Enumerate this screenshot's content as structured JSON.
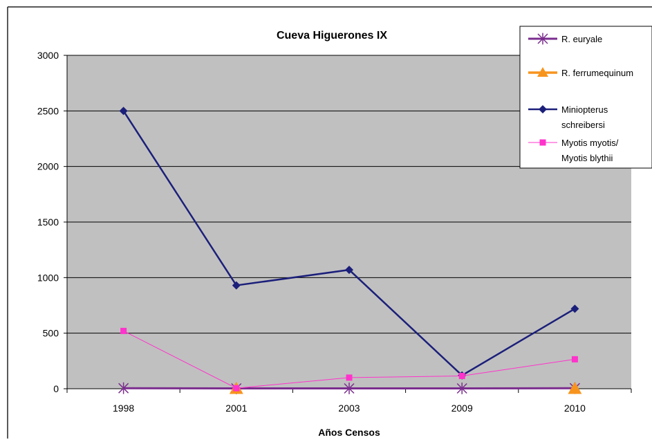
{
  "chart_data": {
    "type": "line",
    "title": "Cueva Higuerones IX",
    "xlabel": "Años Censos",
    "ylabel": "",
    "categories": [
      "1998",
      "2001",
      "2003",
      "2009",
      "2010"
    ],
    "ylim": [
      0,
      3000
    ],
    "yticks": [
      "0",
      "500",
      "1000",
      "1500",
      "2000",
      "2500",
      "3000"
    ],
    "grid": true,
    "legend_position": "top-right",
    "series": [
      {
        "name": "R. euryale",
        "values": [
          5,
          3,
          3,
          3,
          5
        ],
        "color": "#7b2d8e",
        "marker": "star"
      },
      {
        "name": "R. ferrumequinum",
        "values": [
          null,
          0,
          null,
          null,
          0
        ],
        "color": "#f7941d",
        "marker": "triangle"
      },
      {
        "name_lines": [
          "Miniopterus",
          "schreibersi"
        ],
        "values": [
          2500,
          930,
          1070,
          120,
          720
        ],
        "color": "#1b1f7a",
        "marker": "diamond"
      },
      {
        "name_lines": [
          "Myotis myotis/",
          "Myotis blythii"
        ],
        "values": [
          520,
          5,
          100,
          115,
          265
        ],
        "color": "#ff33cc",
        "marker": "square"
      }
    ]
  }
}
